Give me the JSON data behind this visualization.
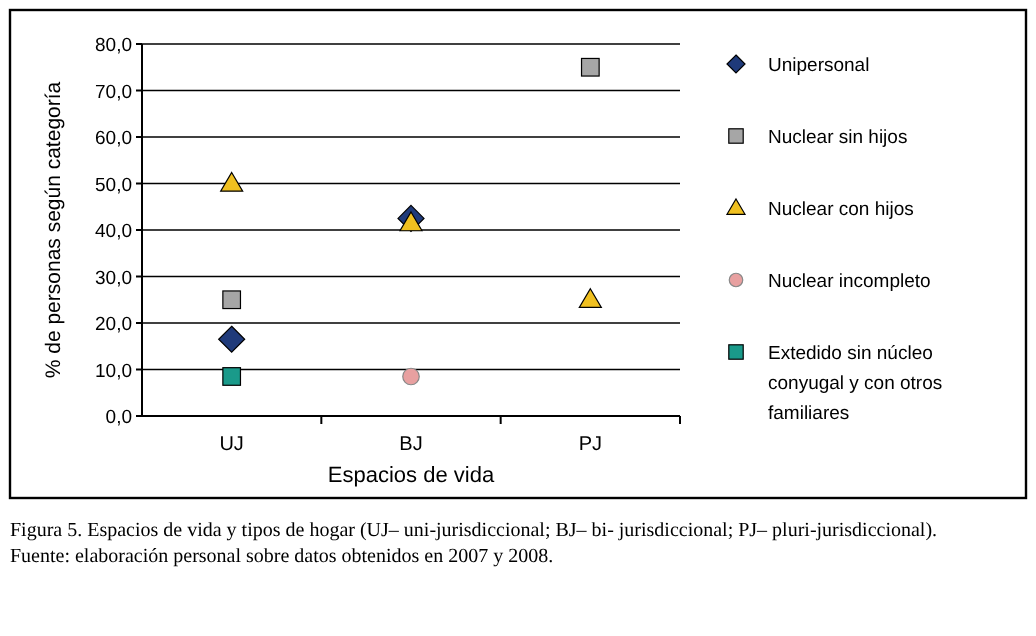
{
  "chart_data": {
    "type": "scatter",
    "xlabel": "Espacios de vida",
    "ylabel": "% de personas según categoría",
    "categories": [
      "UJ",
      "BJ",
      "PJ"
    ],
    "ylim": [
      0,
      80
    ],
    "yticks": [
      {
        "value": 0,
        "label": "0,0"
      },
      {
        "value": 10,
        "label": "10,0"
      },
      {
        "value": 20,
        "label": "20,0"
      },
      {
        "value": 30,
        "label": "30,0"
      },
      {
        "value": 40,
        "label": "40,0"
      },
      {
        "value": 50,
        "label": "50,0"
      },
      {
        "value": 60,
        "label": "60,0"
      },
      {
        "value": 70,
        "label": "70,0"
      },
      {
        "value": 80,
        "label": "80,0"
      }
    ],
    "grid": "y",
    "legend": "right",
    "series": [
      {
        "name": "Unipersonal",
        "color": "#1f3a7a",
        "marker": "diamond",
        "values": [
          16.5,
          42.5,
          null
        ]
      },
      {
        "name": "Nuclear sin hijos",
        "color": "#a6a6a6",
        "marker": "square",
        "values": [
          25,
          null,
          75
        ]
      },
      {
        "name": "Nuclear con hijos",
        "color": "#f0c020",
        "marker": "triangle",
        "values": [
          50,
          41.5,
          25
        ]
      },
      {
        "name": "Nuclear incompleto",
        "color": "#e8a0a0",
        "marker": "circle",
        "values": [
          null,
          8.5,
          null
        ]
      },
      {
        "name": "Extedido sin núcleo conyugal y con otros familiares",
        "color": "#1a9a8a",
        "marker": "square",
        "values": [
          8.5,
          null,
          null
        ]
      }
    ],
    "annotations": [
      "Figura 5. Espacios de vida y tipos de hogar (UJ– uni-jurisdiccional; BJ– bi- jurisdiccional; PJ– pluri-jurisdiccional).",
      "Fuente: elaboración personal sobre datos obtenidos en 2007 y 2008."
    ]
  }
}
